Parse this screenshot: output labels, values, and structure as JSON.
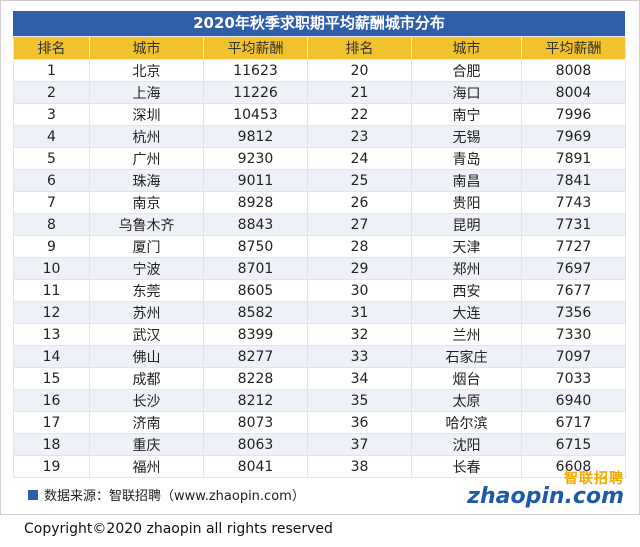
{
  "title": "2020年秋季求职期平均薪酬城市分布",
  "headers": [
    "排名",
    "城市",
    "平均薪酬",
    "排名",
    "城市",
    "平均薪酬"
  ],
  "rows": [
    [
      "1",
      "北京",
      "11623",
      "20",
      "合肥",
      "8008"
    ],
    [
      "2",
      "上海",
      "11226",
      "21",
      "海口",
      "8004"
    ],
    [
      "3",
      "深圳",
      "10453",
      "22",
      "南宁",
      "7996"
    ],
    [
      "4",
      "杭州",
      "9812",
      "23",
      "无锡",
      "7969"
    ],
    [
      "5",
      "广州",
      "9230",
      "24",
      "青岛",
      "7891"
    ],
    [
      "6",
      "珠海",
      "9011",
      "25",
      "南昌",
      "7841"
    ],
    [
      "7",
      "南京",
      "8928",
      "26",
      "贵阳",
      "7743"
    ],
    [
      "8",
      "乌鲁木齐",
      "8843",
      "27",
      "昆明",
      "7731"
    ],
    [
      "9",
      "厦门",
      "8750",
      "28",
      "天津",
      "7727"
    ],
    [
      "10",
      "宁波",
      "8701",
      "29",
      "郑州",
      "7697"
    ],
    [
      "11",
      "东莞",
      "8605",
      "30",
      "西安",
      "7677"
    ],
    [
      "12",
      "苏州",
      "8582",
      "31",
      "大连",
      "7356"
    ],
    [
      "13",
      "武汉",
      "8399",
      "32",
      "兰州",
      "7330"
    ],
    [
      "14",
      "佛山",
      "8277",
      "33",
      "石家庄",
      "7097"
    ],
    [
      "15",
      "成都",
      "8228",
      "34",
      "烟台",
      "7033"
    ],
    [
      "16",
      "长沙",
      "8212",
      "35",
      "太原",
      "6940"
    ],
    [
      "17",
      "济南",
      "8073",
      "36",
      "哈尔滨",
      "6717"
    ],
    [
      "18",
      "重庆",
      "8063",
      "37",
      "沈阳",
      "6715"
    ],
    [
      "19",
      "福州",
      "8041",
      "38",
      "长春",
      "6608"
    ]
  ],
  "source_text": "数据来源：智联招聘（www.zhaopin.com）",
  "logo": {
    "cn": "智联招聘",
    "en": "zhaopin.com"
  },
  "copyright": "Copyright©2020 zhaopin all rights reserved",
  "colors": {
    "title_bg": "#2e5fa8",
    "header_bg": "#f2c12e",
    "alt_row": "#eef2f8"
  }
}
